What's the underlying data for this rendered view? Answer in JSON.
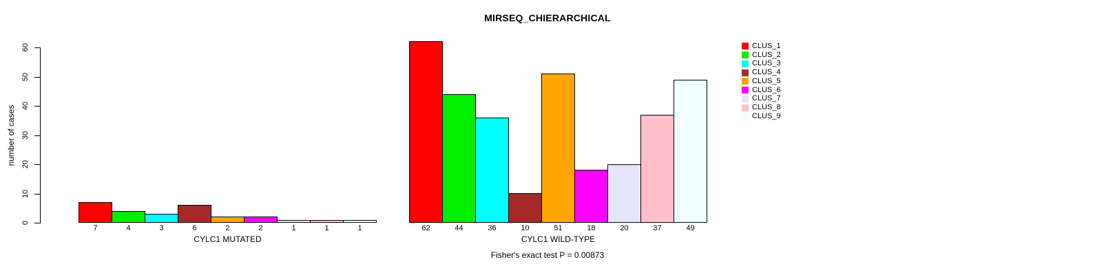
{
  "chart_data": {
    "type": "bar",
    "title": "MIRSEQ_CHIERARCHICAL",
    "ylabel": "number of cases",
    "ylim": [
      0,
      60
    ],
    "yticks": [
      0,
      10,
      20,
      30,
      40,
      50,
      60
    ],
    "grid": false,
    "legend_position": "right",
    "categories": [
      "CYLC1 MUTATED",
      "CYLC1 WILD-TYPE"
    ],
    "series": [
      {
        "name": "CLUS_1",
        "color": "#FF0000",
        "values": [
          7,
          62
        ]
      },
      {
        "name": "CLUS_2",
        "color": "#00EE00",
        "values": [
          4,
          44
        ]
      },
      {
        "name": "CLUS_3",
        "color": "#00FFFF",
        "values": [
          3,
          36
        ]
      },
      {
        "name": "CLUS_4",
        "color": "#A52A2A",
        "values": [
          6,
          10
        ]
      },
      {
        "name": "CLUS_5",
        "color": "#FFA500",
        "values": [
          2,
          51
        ]
      },
      {
        "name": "CLUS_6",
        "color": "#FF00FF",
        "values": [
          2,
          18
        ]
      },
      {
        "name": "CLUS_7",
        "color": "#E6E6FA",
        "values": [
          1,
          20
        ]
      },
      {
        "name": "CLUS_8",
        "color": "#FFC0CB",
        "values": [
          1,
          37
        ]
      },
      {
        "name": "CLUS_9",
        "color": "#F0FFFF",
        "values": [
          1,
          49
        ]
      }
    ],
    "groups": [
      {
        "label": "CYLC1 MUTATED",
        "values": [
          7,
          4,
          3,
          6,
          2,
          2,
          1,
          1,
          1
        ]
      },
      {
        "label": "CYLC1 WILD-TYPE",
        "values": [
          62,
          44,
          36,
          10,
          51,
          18,
          20,
          37,
          49
        ]
      }
    ],
    "annotation": "Fisher's exact test P = 0.00873"
  }
}
